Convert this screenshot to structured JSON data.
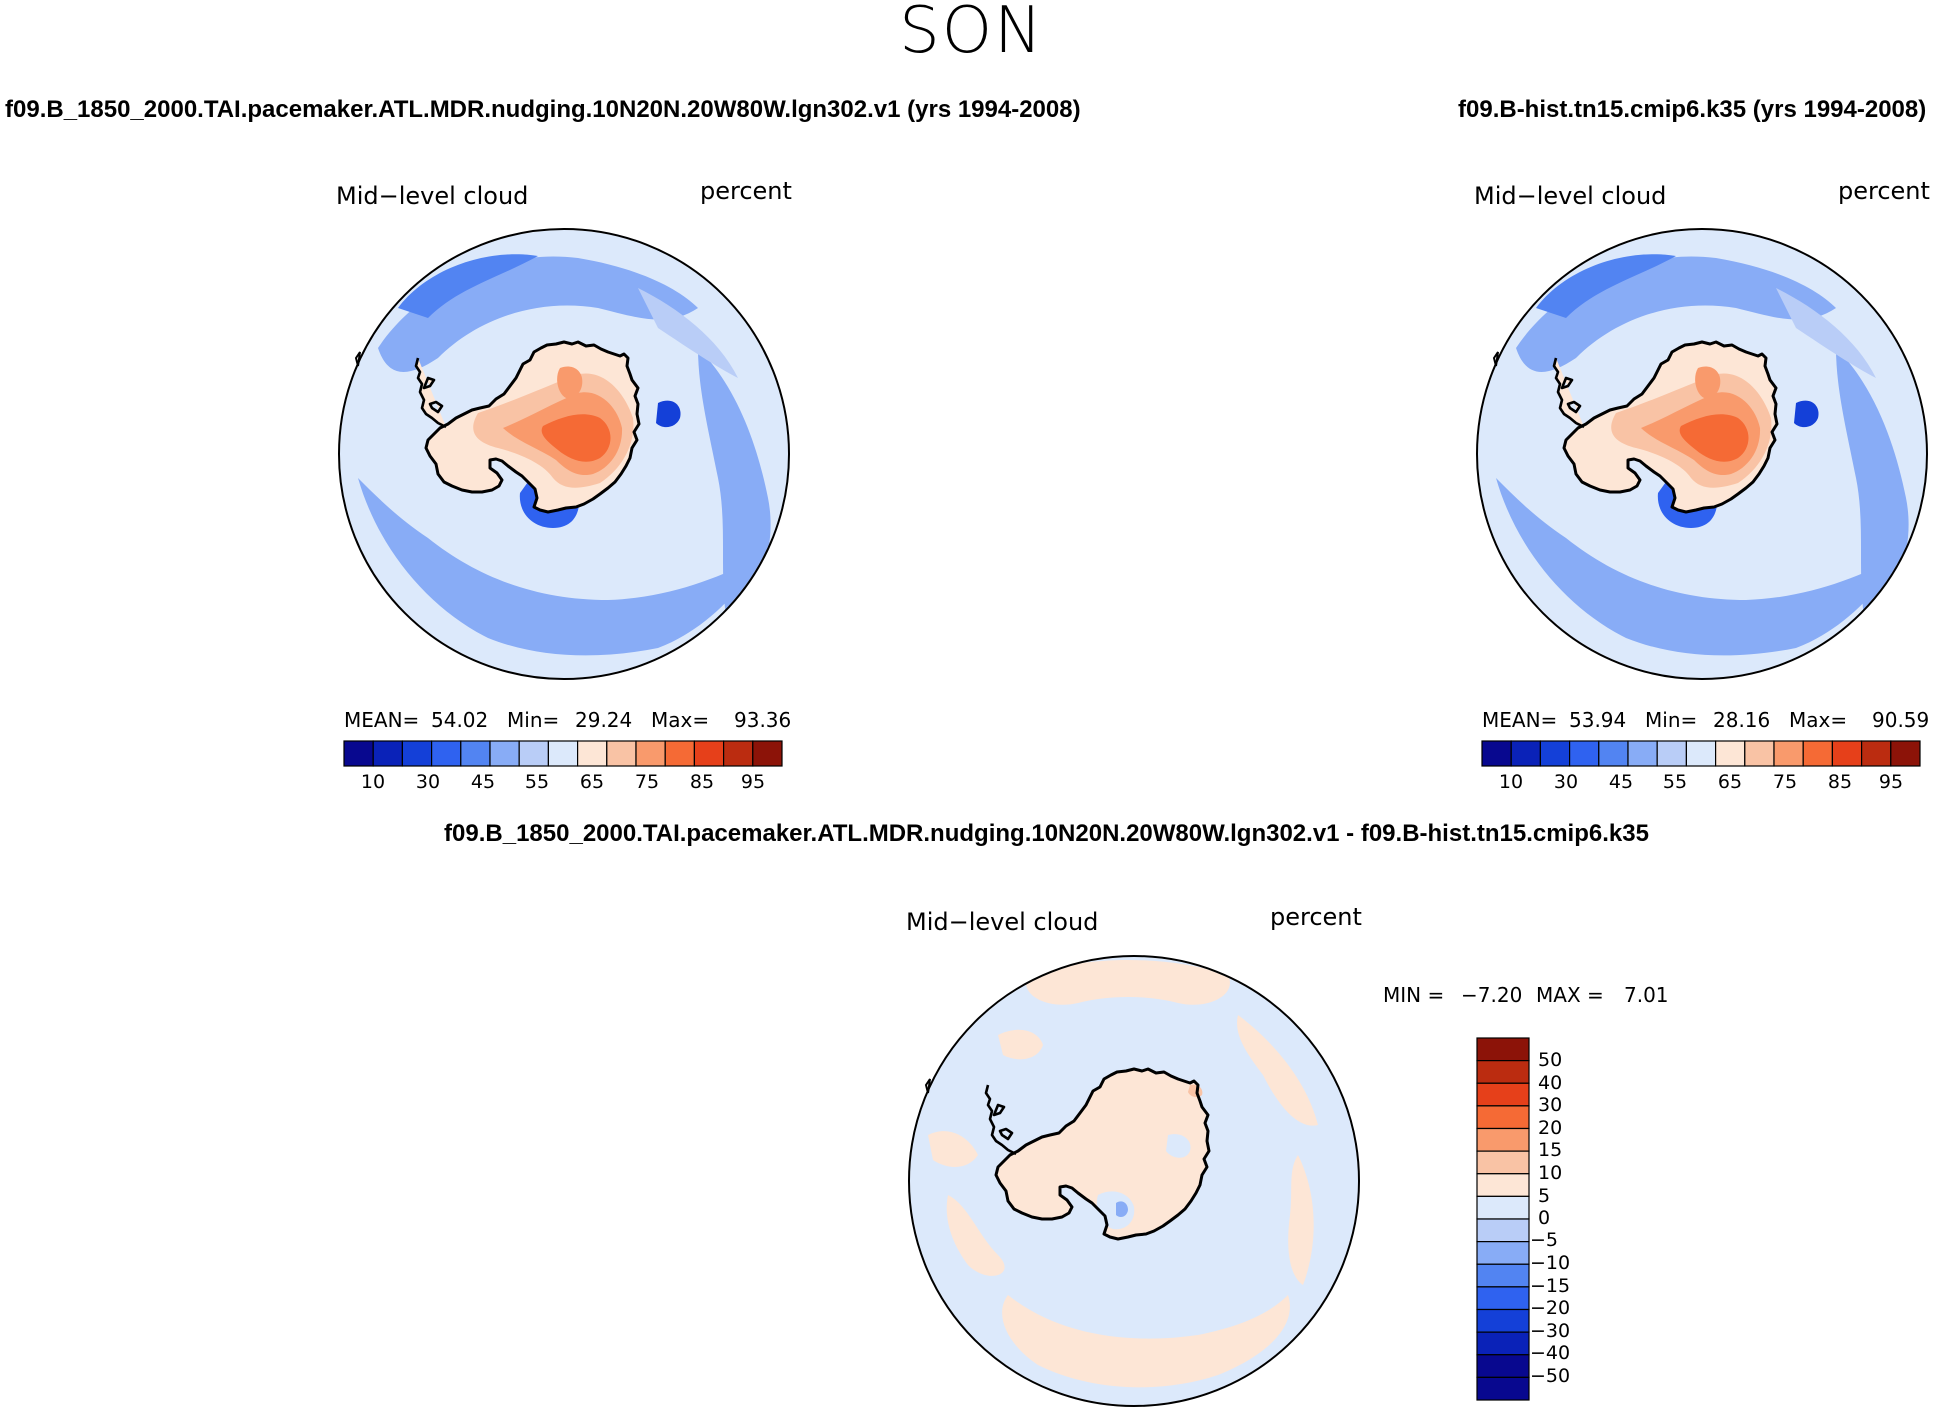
{
  "season": "SON",
  "colors": {
    "abs_scale": [
      "#08088f",
      "#0a22b8",
      "#1440d8",
      "#2f62f0",
      "#5284f2",
      "#88acf6",
      "#b9cdf7",
      "#dce9fb",
      "#fde6d6",
      "#f9c3a5",
      "#f99a6c",
      "#f56a35",
      "#e6401a",
      "#bb2c10",
      "#8c1308"
    ],
    "diff_scale": [
      "#08088f",
      "#0a22b8",
      "#1440d8",
      "#2f62f0",
      "#5284f2",
      "#88acf6",
      "#b9cdf7",
      "#dce9fb",
      "#fde6d6",
      "#f9c3a5",
      "#f99a6c",
      "#f56a35",
      "#e6401a",
      "#bb2c10",
      "#8c1308"
    ],
    "coastline": "#000000"
  },
  "panels": [
    {
      "case": "f09.B_1850_2000.TAI.pacemaker.ATL.MDR.nudging.10N20N.20W80W.lgn302.v1 (yrs 1994-2008)",
      "variable": "Mid−level cloud",
      "units": "percent",
      "mean_label": "MEAN=",
      "mean": "54.02",
      "min_label": "Min=",
      "min": "29.24",
      "max_label": "Max=",
      "max": "93.36",
      "colorbar_ticks": [
        "10",
        "30",
        "45",
        "55",
        "65",
        "75",
        "85",
        "95"
      ]
    },
    {
      "case": "f09.B-hist.tn15.cmip6.k35 (yrs 1994-2008)",
      "variable": "Mid−level cloud",
      "units": "percent",
      "mean_label": "MEAN=",
      "mean": "53.94",
      "min_label": "Min=",
      "min": "28.16",
      "max_label": "Max=",
      "max": "90.59",
      "colorbar_ticks": [
        "10",
        "30",
        "45",
        "55",
        "65",
        "75",
        "85",
        "95"
      ]
    }
  ],
  "difference": {
    "title": "f09.B_1850_2000.TAI.pacemaker.ATL.MDR.nudging.10N20N.20W80W.lgn302.v1 - f09.B-hist.tn15.cmip6.k35",
    "variable": "Mid−level cloud",
    "units": "percent",
    "min_label": "MIN =",
    "min": "−7.20",
    "max_label": "MAX =",
    "max": "7.01",
    "colorbar_ticks": [
      "50",
      "40",
      "30",
      "20",
      "15",
      "10",
      "5",
      "0",
      "−5",
      "−10",
      "−15",
      "−20",
      "−30",
      "−40",
      "−50"
    ]
  }
}
